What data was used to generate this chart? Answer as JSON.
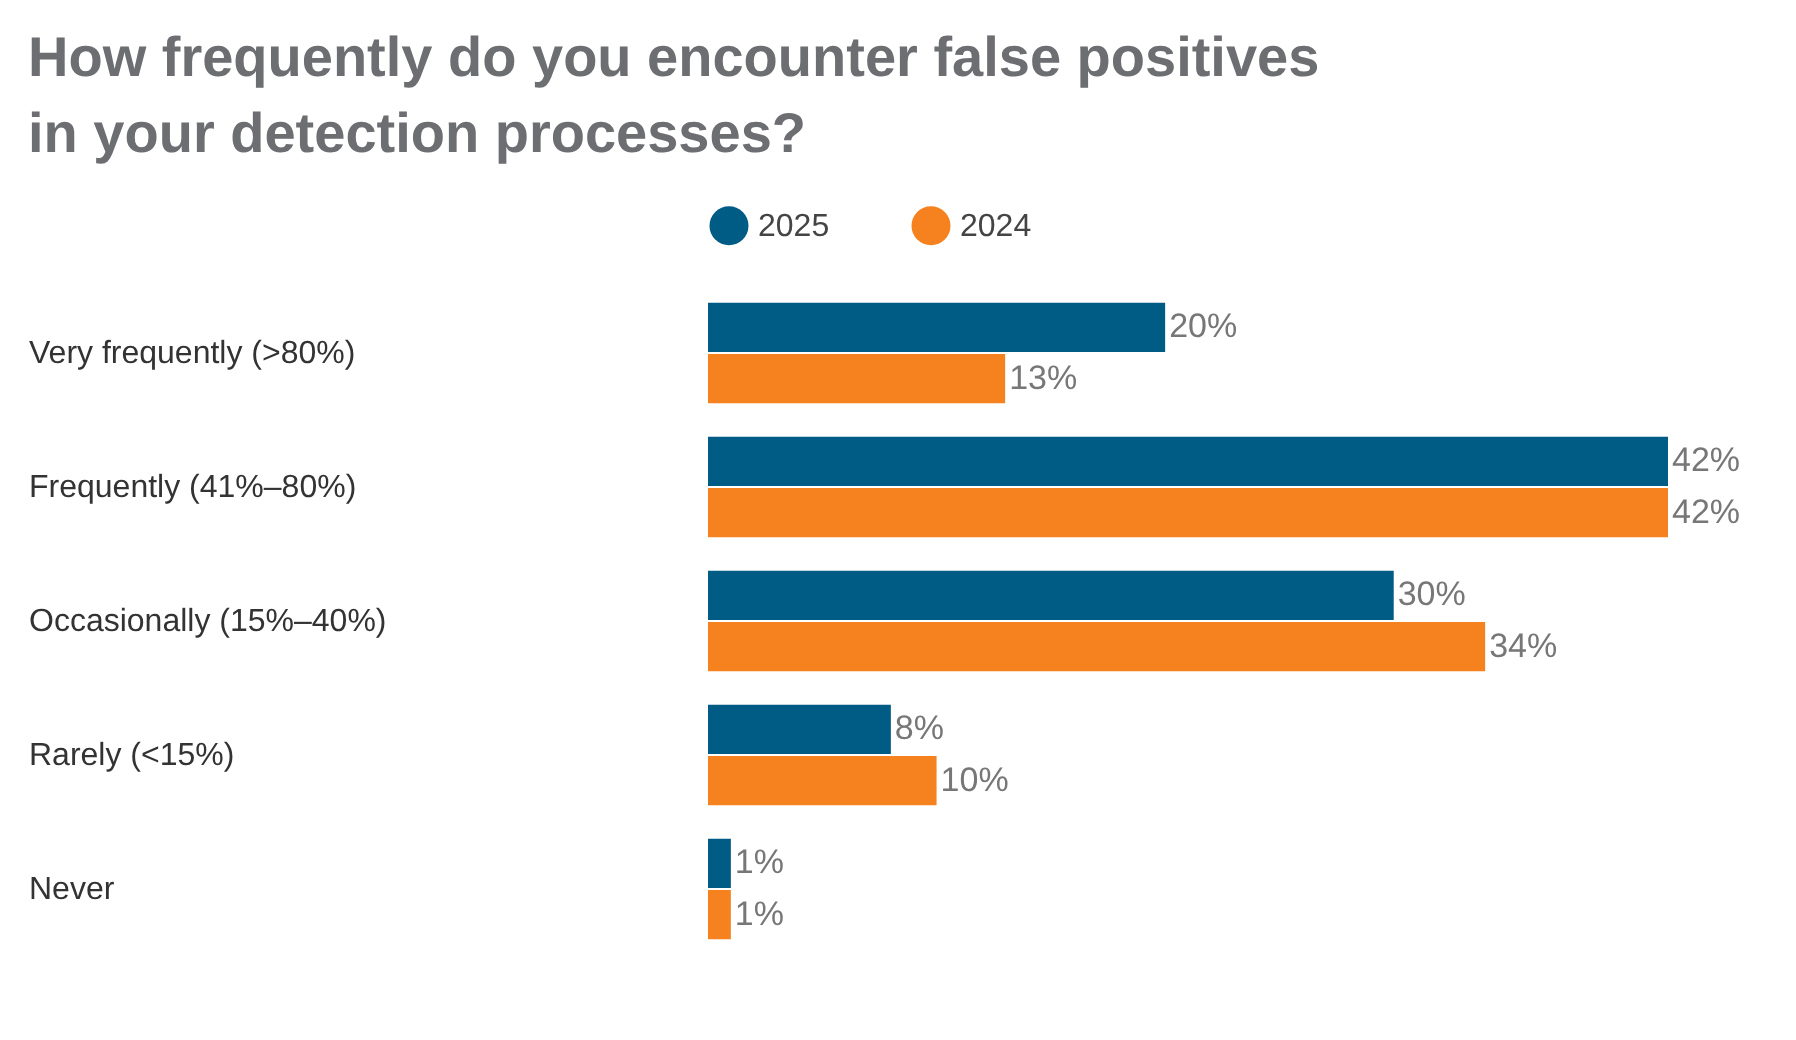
{
  "chart_data": {
    "type": "bar",
    "orientation": "horizontal",
    "title": "How frequently do you encounter false positives in your detection processes?",
    "categories": [
      "Very frequently (>80%)",
      "Frequently (41%–80%)",
      "Occasionally (15%–40%)",
      "Rarely (<15%)",
      "Never"
    ],
    "series": [
      {
        "name": "2025",
        "color": "#005b85",
        "values": [
          20,
          42,
          30,
          8,
          1
        ],
        "value_labels": [
          "20%",
          "42%",
          "30%",
          "8%",
          "1%"
        ]
      },
      {
        "name": "2024",
        "color": "#f5821f",
        "values": [
          13,
          42,
          34,
          10,
          1
        ],
        "value_labels": [
          "13%",
          "42%",
          "34%",
          "10%",
          "1%"
        ]
      }
    ],
    "legend": "top"
  }
}
